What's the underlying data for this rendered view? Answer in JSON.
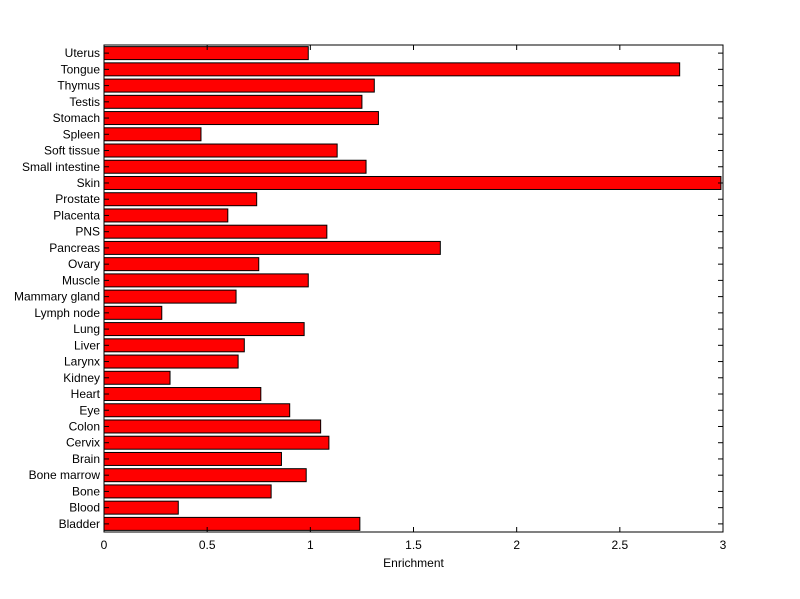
{
  "chart_data": {
    "type": "bar",
    "orientation": "horizontal",
    "title": "",
    "xlabel": "Enrichment",
    "ylabel": "",
    "xlim": [
      0,
      3
    ],
    "xticks": [
      "0",
      "0.5",
      "1",
      "1.5",
      "2",
      "2.5",
      "3"
    ],
    "grid": false,
    "bar_color": "#ff0000",
    "bar_edge_color": "#000000",
    "categories": [
      "Uterus",
      "Tongue",
      "Thymus",
      "Testis",
      "Stomach",
      "Spleen",
      "Soft tissue",
      "Small intestine",
      "Skin",
      "Prostate",
      "Placenta",
      "PNS",
      "Pancreas",
      "Ovary",
      "Muscle",
      "Mammary gland",
      "Lymph node",
      "Lung",
      "Liver",
      "Larynx",
      "Kidney",
      "Heart",
      "Eye",
      "Colon",
      "Cervix",
      "Brain",
      "Bone marrow",
      "Bone",
      "Blood",
      "Bladder"
    ],
    "values": [
      0.99,
      2.79,
      1.31,
      1.25,
      1.33,
      0.47,
      1.13,
      1.27,
      2.99,
      0.74,
      0.6,
      1.08,
      1.63,
      0.75,
      0.99,
      0.64,
      0.28,
      0.97,
      0.68,
      0.65,
      0.32,
      0.76,
      0.9,
      1.05,
      1.09,
      0.86,
      0.98,
      0.81,
      0.36,
      1.24
    ]
  }
}
